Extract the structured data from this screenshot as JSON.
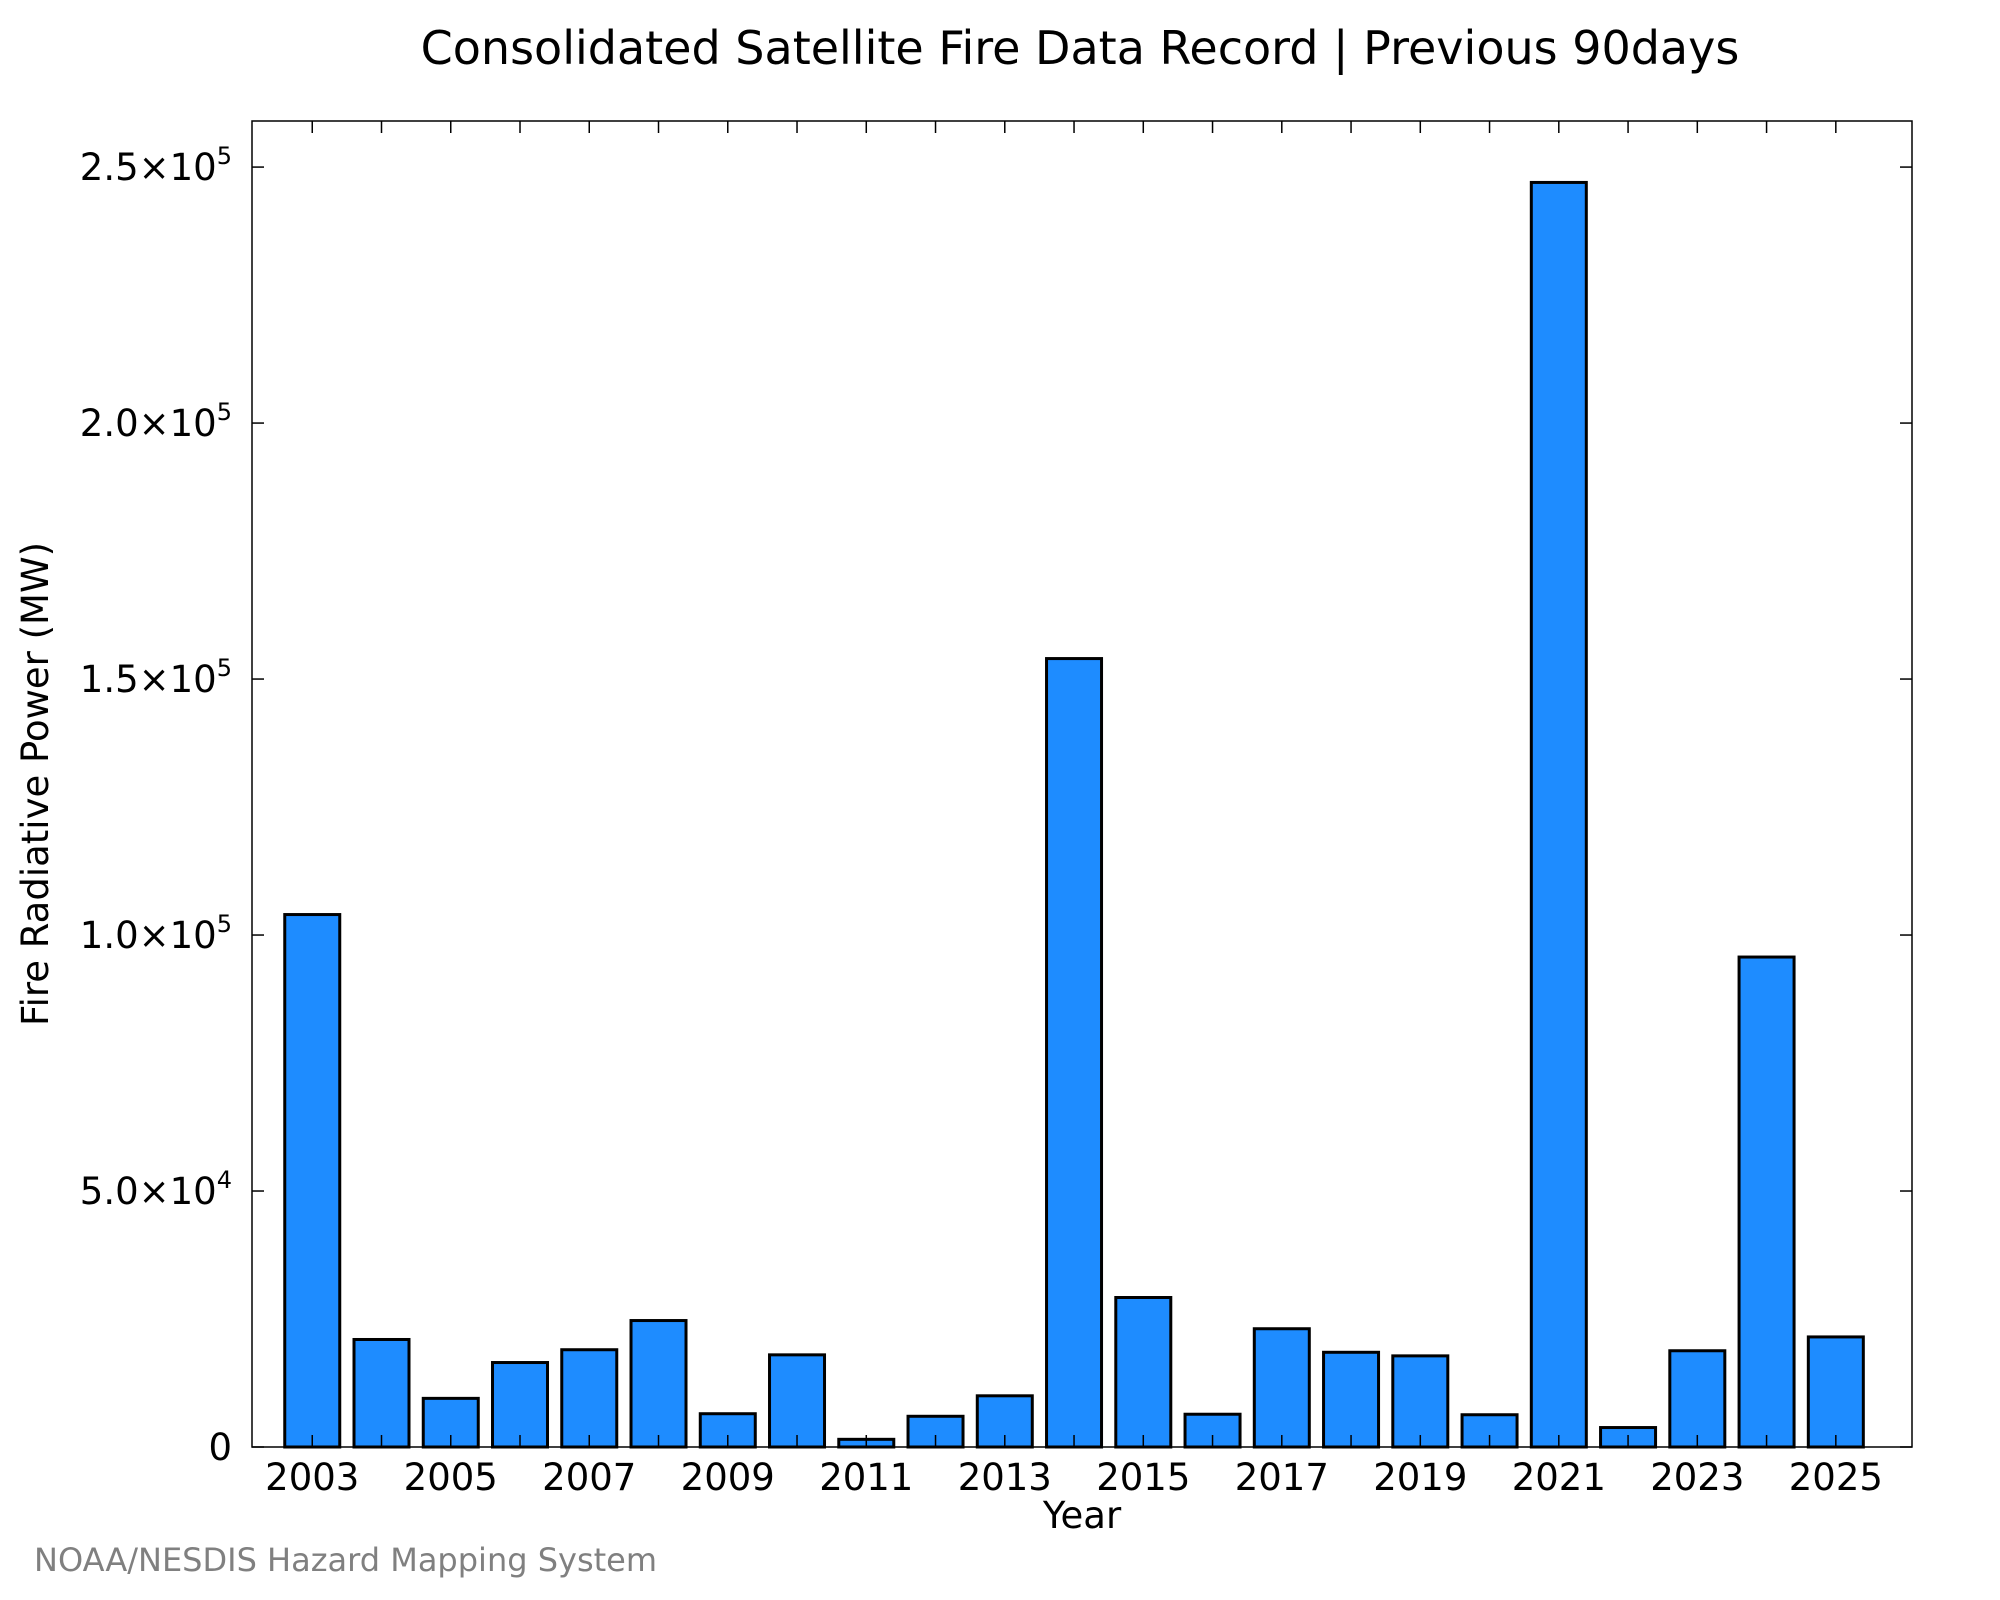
{
  "chart_data": {
    "type": "bar",
    "title": "Consolidated Satellite Fire Data Record | Previous 90days",
    "xlabel": "Year",
    "ylabel": "Fire Radiative Power (MW)",
    "categories": [
      "2003",
      "2004",
      "2005",
      "2006",
      "2007",
      "2008",
      "2009",
      "2010",
      "2011",
      "2012",
      "2013",
      "2014",
      "2015",
      "2016",
      "2017",
      "2018",
      "2019",
      "2020",
      "2021",
      "2022",
      "2023",
      "2024",
      "2025"
    ],
    "values": [
      104000,
      21000,
      9500,
      16500,
      19000,
      24700,
      6500,
      18000,
      1500,
      6000,
      10000,
      154000,
      29200,
      6400,
      23100,
      18500,
      17800,
      6300,
      247000,
      3800,
      18800,
      95700,
      21500
    ],
    "xtick_labels": [
      "2003",
      "2005",
      "2007",
      "2009",
      "2011",
      "2013",
      "2015",
      "2017",
      "2019",
      "2021",
      "2023",
      "2025"
    ],
    "yticks": [
      {
        "value": 0,
        "mantissa": "0",
        "exp": ""
      },
      {
        "value": 50000,
        "mantissa": "5.0×10",
        "exp": "4"
      },
      {
        "value": 100000,
        "mantissa": "1.0×10",
        "exp": "5"
      },
      {
        "value": 150000,
        "mantissa": "1.5×10",
        "exp": "5"
      },
      {
        "value": 200000,
        "mantissa": "2.0×10",
        "exp": "5"
      },
      {
        "value": 250000,
        "mantissa": "2.5×10",
        "exp": "5"
      }
    ],
    "xlim": [
      2002.13,
      2026.1
    ],
    "ylim": [
      0,
      259000
    ],
    "bar_color": "#1e8cff",
    "grid": false,
    "legend": "none"
  },
  "credit": "NOAA/NESDIS Hazard Mapping System"
}
